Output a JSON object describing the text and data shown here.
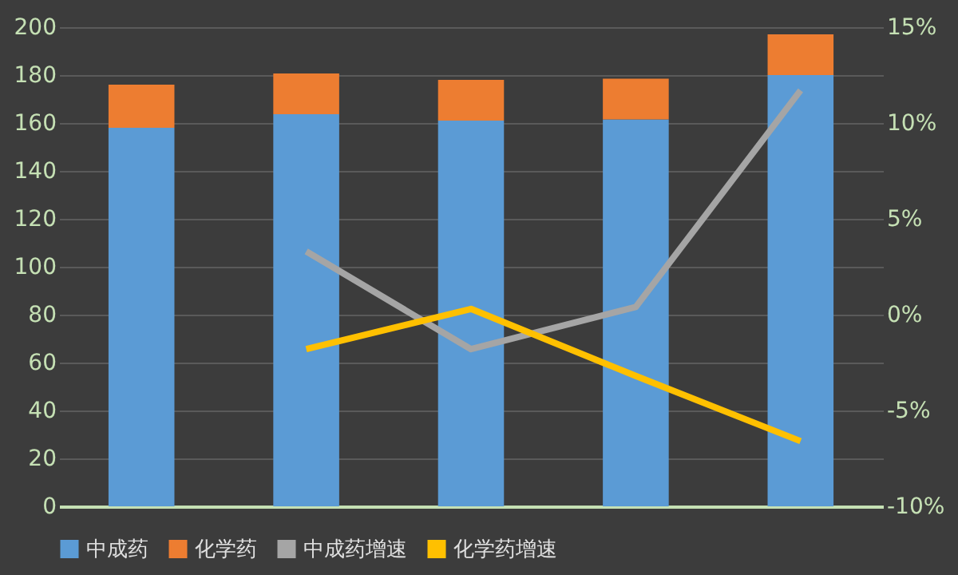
{
  "chart_data": {
    "type": "bar",
    "categories": [
      null,
      null,
      null,
      null,
      null
    ],
    "stacked": true,
    "series": [
      {
        "name": "中成药",
        "color": "#5b9bd5",
        "values": [
          158,
          163.7,
          161,
          161.5,
          180
        ]
      },
      {
        "name": "化学药",
        "color": "#ed7d31",
        "values": [
          18,
          17,
          17,
          17,
          17
        ]
      },
      {
        "name": "中成药增速",
        "type": "line",
        "axis": "y2",
        "color": "#a5a5a5",
        "values": [
          null,
          3.3,
          -1.8,
          0.4,
          11.7
        ]
      },
      {
        "name": "化学药增速",
        "type": "line",
        "axis": "y2",
        "color": "#ffc000",
        "values": [
          null,
          -1.8,
          0.3,
          -3.2,
          -6.6
        ]
      }
    ],
    "ylim": [
      0,
      200
    ],
    "yticks": [
      0,
      20,
      40,
      60,
      80,
      100,
      120,
      140,
      160,
      180,
      200
    ],
    "y2lim": [
      -10,
      15
    ],
    "y2ticks": [
      {
        "value": -10,
        "label": "-10%"
      },
      {
        "value": -5,
        "label": "-5%"
      },
      {
        "value": 0,
        "label": "0%"
      },
      {
        "value": 5,
        "label": "5%"
      },
      {
        "value": 10,
        "label": "10%"
      },
      {
        "value": 15,
        "label": "15%"
      }
    ],
    "grid": "y",
    "legend": "bottom",
    "line_style": "solid",
    "marker": "none"
  }
}
